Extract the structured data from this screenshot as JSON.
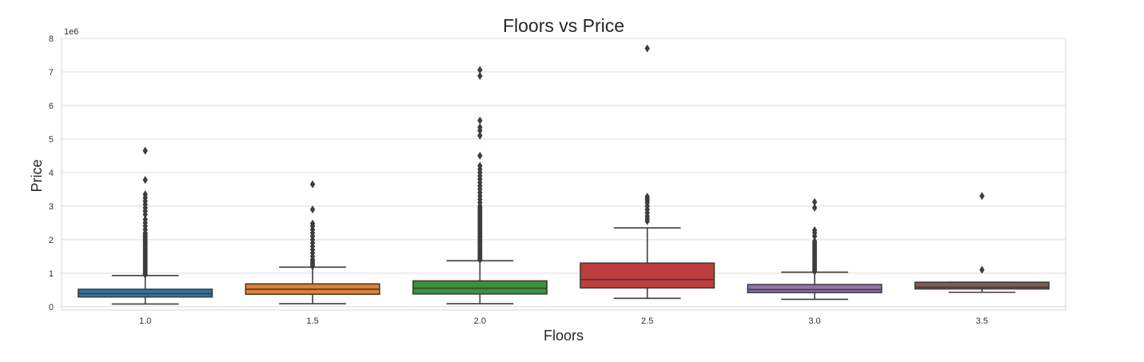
{
  "chart_data": {
    "type": "box",
    "title": "Floors vs Price",
    "xlabel": "Floors",
    "ylabel": "Price",
    "y_scale_label": "1e6",
    "ylim": [
      -0.1,
      8.0
    ],
    "y_ticks": [
      0,
      1,
      2,
      3,
      4,
      5,
      6,
      7,
      8
    ],
    "grid": true,
    "categories": [
      "1.0",
      "1.5",
      "2.0",
      "2.5",
      "3.0",
      "3.5"
    ],
    "series": [
      {
        "category": "1.0",
        "color": "#3274a1",
        "whisker_low": 0.08,
        "q1": 0.29,
        "median": 0.39,
        "q3": 0.52,
        "whisker_high": 0.93,
        "outliers": [
          0.95,
          1.0,
          1.05,
          1.1,
          1.15,
          1.2,
          1.25,
          1.3,
          1.35,
          1.4,
          1.45,
          1.5,
          1.55,
          1.6,
          1.65,
          1.7,
          1.75,
          1.8,
          1.85,
          1.9,
          1.95,
          2.0,
          2.05,
          2.1,
          2.15,
          2.2,
          2.3,
          2.4,
          2.5,
          2.6,
          2.75,
          2.85,
          2.95,
          3.05,
          3.15,
          3.25,
          3.35,
          3.78,
          4.65
        ]
      },
      {
        "category": "1.5",
        "color": "#e1812c",
        "whisker_low": 0.09,
        "q1": 0.37,
        "median": 0.52,
        "q3": 0.68,
        "whisker_high": 1.18,
        "outliers": [
          1.2,
          1.25,
          1.3,
          1.35,
          1.4,
          1.5,
          1.6,
          1.7,
          1.8,
          1.9,
          2.0,
          2.1,
          2.2,
          2.3,
          2.4,
          2.48,
          2.9,
          3.65
        ]
      },
      {
        "category": "2.0",
        "color": "#3a923a",
        "whisker_low": 0.09,
        "q1": 0.38,
        "median": 0.55,
        "q3": 0.77,
        "whisker_high": 1.37,
        "outliers": [
          1.4,
          1.45,
          1.5,
          1.55,
          1.6,
          1.65,
          1.7,
          1.75,
          1.8,
          1.85,
          1.9,
          1.95,
          2.0,
          2.05,
          2.1,
          2.15,
          2.2,
          2.25,
          2.3,
          2.35,
          2.4,
          2.45,
          2.5,
          2.55,
          2.6,
          2.65,
          2.7,
          2.75,
          2.8,
          2.85,
          2.9,
          2.95,
          3.0,
          3.1,
          3.2,
          3.3,
          3.4,
          3.5,
          3.6,
          3.7,
          3.8,
          3.9,
          4.0,
          4.1,
          4.2,
          4.5,
          5.1,
          5.25,
          5.35,
          5.55,
          6.88,
          7.06
        ]
      },
      {
        "category": "2.5",
        "color": "#c03d3e",
        "whisker_low": 0.25,
        "q1": 0.56,
        "median": 0.81,
        "q3": 1.3,
        "whisker_high": 2.35,
        "outliers": [
          2.55,
          2.62,
          2.7,
          2.8,
          2.9,
          3.0,
          3.1,
          3.17,
          3.22,
          3.28,
          7.7
        ]
      },
      {
        "category": "3.0",
        "color": "#9372b2",
        "whisker_low": 0.22,
        "q1": 0.42,
        "median": 0.51,
        "q3": 0.66,
        "whisker_high": 1.03,
        "outliers": [
          1.05,
          1.1,
          1.15,
          1.2,
          1.25,
          1.3,
          1.35,
          1.4,
          1.45,
          1.5,
          1.55,
          1.6,
          1.65,
          1.7,
          1.75,
          1.8,
          1.85,
          1.9,
          1.95,
          2.1,
          2.2,
          2.28,
          2.95,
          3.12
        ]
      },
      {
        "category": "3.5",
        "color": "#845b53",
        "whisker_low": 0.43,
        "q1": 0.53,
        "median": 0.58,
        "q3": 0.73,
        "whisker_high": 0.73,
        "outliers": [
          1.1,
          3.3
        ]
      }
    ]
  }
}
